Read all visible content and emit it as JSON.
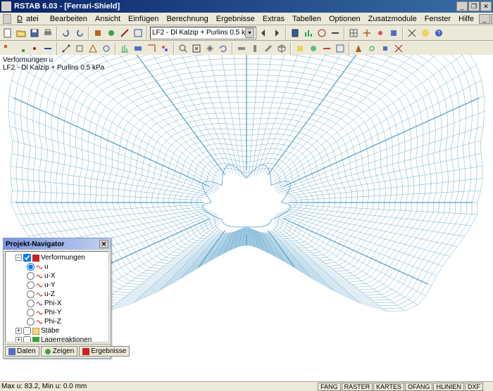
{
  "app": {
    "title": "RSTAB 6.03 - [Ferrari-Shield]",
    "window_buttons": [
      "_",
      "❐",
      "✕"
    ],
    "mdi_buttons": [
      "_",
      "❐",
      "✕"
    ]
  },
  "menu": [
    "Datei",
    "Bearbeiten",
    "Ansicht",
    "Einfügen",
    "Berechnung",
    "Ergebnisse",
    "Extras",
    "Tabellen",
    "Optionen",
    "Zusatzmodule",
    "Fenster",
    "Hilfe"
  ],
  "toolbar1": {
    "combo_value": "LF2 - Dl Kalzip + Purlins 0.5 k"
  },
  "canvas": {
    "label_line1": "Verformungen u",
    "label_line2": "LF2 - Dl Kalzip + Purlins 0.5 kPa",
    "mesh_color": "#3a8fc0",
    "background": "#ffffff"
  },
  "navigator": {
    "title": "Projekt-Navigator",
    "tree": {
      "root": "Verformungen",
      "items": [
        {
          "type": "radio",
          "label": "u",
          "checked": true,
          "color": "#d02020"
        },
        {
          "type": "radio",
          "label": "u-X",
          "checked": false,
          "color": "#d02020"
        },
        {
          "type": "radio",
          "label": "u-Y",
          "checked": false,
          "color": "#d02020"
        },
        {
          "type": "radio",
          "label": "u-Z",
          "checked": false,
          "color": "#d02020"
        },
        {
          "type": "radio",
          "label": "Phi-X",
          "checked": false,
          "color": "#d02020"
        },
        {
          "type": "radio",
          "label": "Phi-Y",
          "checked": false,
          "color": "#d02020"
        },
        {
          "type": "radio",
          "label": "Phi-Z",
          "checked": false,
          "color": "#d02020"
        }
      ],
      "siblings": [
        "Stäbe",
        "Lagerreaktionen"
      ]
    },
    "tabs": [
      "Daten",
      "Zeigen",
      "Ergebnisse"
    ]
  },
  "statusbar": {
    "left": "Max u: 83.2, Min u: 0.0 mm",
    "tabs": [
      "FANG",
      "RASTER",
      "KARTES",
      "OFANG",
      "HLINIEN",
      "DXF"
    ]
  },
  "colors": {
    "titlebar_start": "#0a246a",
    "titlebar_end": "#3a6ea5",
    "ui_bg": "#ece9d8",
    "border": "#aca899"
  }
}
